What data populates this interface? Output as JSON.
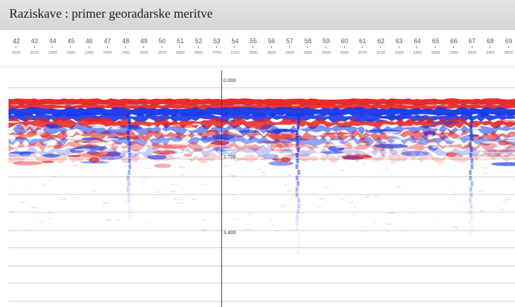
{
  "window": {
    "title": "Raziskave : primer georadarske meritve"
  },
  "ruler": {
    "markers": [
      {
        "num": "42",
        "dist": "2150"
      },
      {
        "num": "43",
        "dist": "2200"
      },
      {
        "num": "44",
        "dist": "2250"
      },
      {
        "num": "45",
        "dist": "2300"
      },
      {
        "num": "46",
        "dist": "2350"
      },
      {
        "num": "47",
        "dist": "2400"
      },
      {
        "num": "48",
        "dist": "2450"
      },
      {
        "num": "49",
        "dist": "2500"
      },
      {
        "num": "50",
        "dist": "2550"
      },
      {
        "num": "51",
        "dist": "2600"
      },
      {
        "num": "52",
        "dist": "2650"
      },
      {
        "num": "53",
        "dist": "2700"
      },
      {
        "num": "54",
        "dist": "2750"
      },
      {
        "num": "55",
        "dist": "2800"
      },
      {
        "num": "56",
        "dist": "2850"
      },
      {
        "num": "57",
        "dist": "2900"
      },
      {
        "num": "58",
        "dist": "2950"
      },
      {
        "num": "59",
        "dist": "3000"
      },
      {
        "num": "60",
        "dist": "3050"
      },
      {
        "num": "61",
        "dist": "3100"
      },
      {
        "num": "62",
        "dist": "3150"
      },
      {
        "num": "63",
        "dist": "3200"
      },
      {
        "num": "64",
        "dist": "3250"
      },
      {
        "num": "65",
        "dist": "3300"
      },
      {
        "num": "66",
        "dist": "3350"
      },
      {
        "num": "67",
        "dist": "3400"
      },
      {
        "num": "68",
        "dist": "3450"
      },
      {
        "num": "69",
        "dist": "3500"
      }
    ]
  },
  "radargram": {
    "depth_labels": [
      "0.000",
      "1.700",
      "3.400"
    ],
    "colors": {
      "positive": "#e8201e",
      "negative": "#1636e8",
      "gridline": "#9a9a9a",
      "cursor": "#444444"
    }
  }
}
